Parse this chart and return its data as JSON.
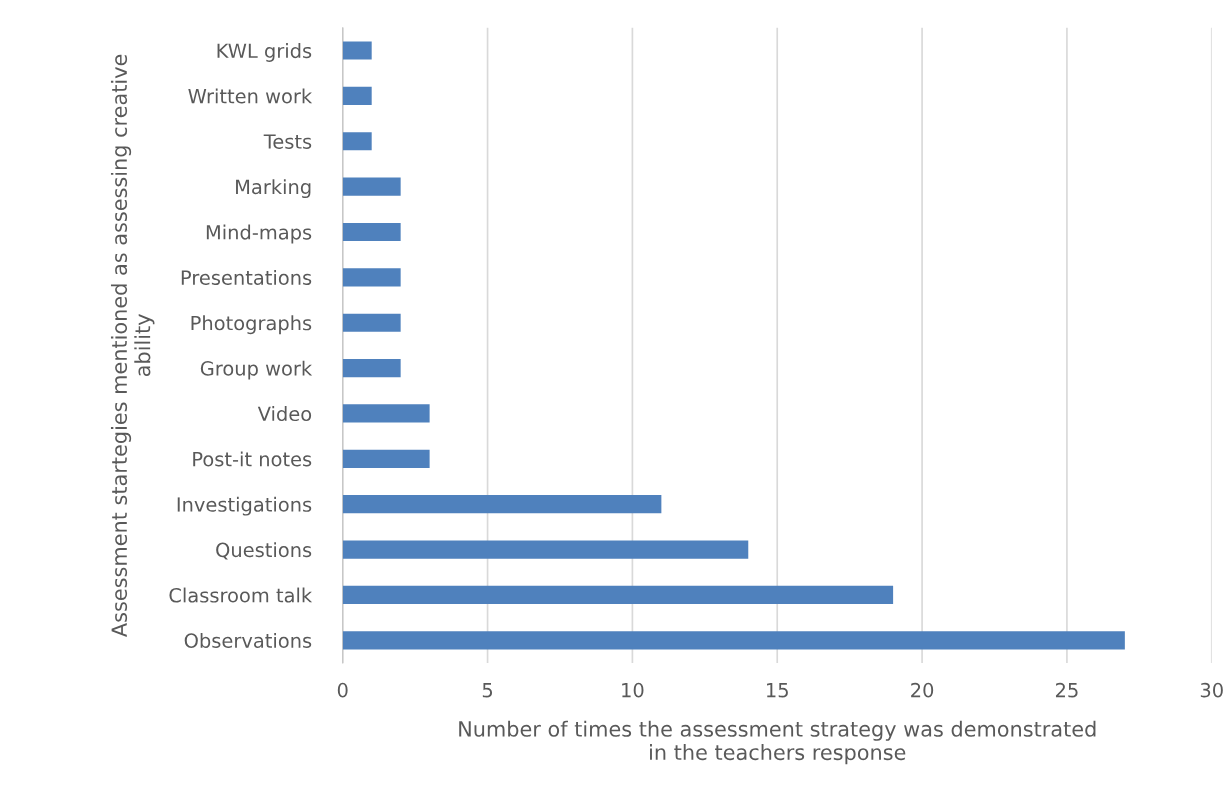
{
  "chart_data": {
    "type": "bar",
    "orientation": "horizontal",
    "xlabel": "Number of times the assessment strategy was demonstrated\nin the teachers response",
    "ylabel": "Assessment startegies mentioned as assessing creative\nability",
    "categories": [
      "KWL grids",
      "Written work",
      "Tests",
      "Marking",
      "Mind-maps",
      "Presentations",
      "Photographs",
      "Group work",
      "Video",
      "Post-it notes",
      "Investigations",
      "Questions",
      "Classroom talk",
      "Observations"
    ],
    "values": [
      1,
      1,
      1,
      2,
      2,
      2,
      2,
      2,
      3,
      3,
      11,
      14,
      19,
      27
    ],
    "color": "#4f81bd",
    "xlim": [
      0,
      30
    ],
    "xticks": [
      0,
      5,
      10,
      15,
      20,
      25,
      30
    ],
    "grid": "x",
    "legend": false
  }
}
